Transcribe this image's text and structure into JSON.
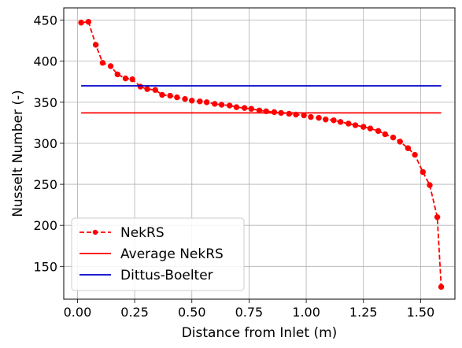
{
  "chart_data": {
    "type": "line",
    "title": "",
    "xlabel": "Distance from Inlet (m)",
    "ylabel": "Nusselt Number (-)",
    "xlim": [
      -0.06,
      1.65
    ],
    "ylim": [
      110,
      465
    ],
    "grid": true,
    "legend_position": "lower-left",
    "x_ticks": [
      0.0,
      0.25,
      0.5,
      0.75,
      1.0,
      1.25,
      1.5
    ],
    "x_tick_labels": [
      "0.00",
      "0.25",
      "0.50",
      "0.75",
      "1.00",
      "1.25",
      "1.50"
    ],
    "y_ticks": [
      150,
      200,
      250,
      300,
      350,
      400,
      450
    ],
    "y_tick_labels": [
      "150",
      "200",
      "250",
      "300",
      "350",
      "400",
      "450"
    ],
    "series": [
      {
        "name": "NekRS",
        "style": "dashed-markers",
        "color": "#ff0000",
        "x": [
          0.016,
          0.048,
          0.08,
          0.11,
          0.145,
          0.175,
          0.21,
          0.24,
          0.275,
          0.305,
          0.34,
          0.37,
          0.405,
          0.435,
          0.47,
          0.5,
          0.535,
          0.565,
          0.6,
          0.63,
          0.665,
          0.695,
          0.73,
          0.76,
          0.795,
          0.825,
          0.86,
          0.89,
          0.925,
          0.955,
          0.99,
          1.02,
          1.055,
          1.085,
          1.12,
          1.15,
          1.185,
          1.215,
          1.25,
          1.28,
          1.315,
          1.345,
          1.38,
          1.41,
          1.445,
          1.475,
          1.51,
          1.54,
          1.573
        ],
        "y": [
          447,
          448,
          420,
          398,
          394,
          384,
          379,
          378,
          369,
          366,
          365,
          359,
          358,
          356,
          354,
          352,
          351,
          350,
          348,
          347,
          346,
          344,
          343,
          342,
          340,
          339,
          338,
          337,
          336,
          335,
          334,
          332,
          331,
          329,
          328,
          326,
          324,
          322,
          320,
          318,
          315,
          311,
          307,
          302,
          294,
          286,
          265,
          249,
          210
        ]
      },
      {
        "name": "Average NekRS",
        "style": "solid",
        "color": "#ff0000",
        "x": [
          0.016,
          1.59
        ],
        "y": [
          337,
          337
        ]
      },
      {
        "name": "Dittus-Boelter",
        "style": "solid",
        "color": "#0000cc",
        "x": [
          0.016,
          1.59
        ],
        "y": [
          370,
          370
        ]
      }
    ],
    "nekrs_last_point": [
      1.59,
      125
    ]
  }
}
